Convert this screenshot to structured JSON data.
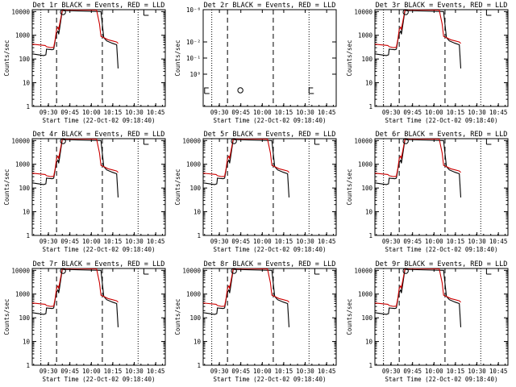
{
  "chart_data": {
    "type": "line",
    "panels": [
      {
        "title": "Det 1r BLACK = Events, RED = LLD",
        "kind": "full"
      },
      {
        "title": "Det 2r BLACK = Events, RED = LLD",
        "kind": "empty"
      },
      {
        "title": "Det 3r BLACK = Events, RED = LLD",
        "kind": "full"
      },
      {
        "title": "Det 4r BLACK = Events, RED = LLD",
        "kind": "full"
      },
      {
        "title": "Det 5r BLACK = Events, RED = LLD",
        "kind": "full"
      },
      {
        "title": "Det 6r BLACK = Events, RED = LLD",
        "kind": "full"
      },
      {
        "title": "Det 7r BLACK = Events, RED = LLD",
        "kind": "full"
      },
      {
        "title": "Det 8r BLACK = Events, RED = LLD",
        "kind": "full"
      },
      {
        "title": "Det 9r BLACK = Events, RED = LLD",
        "kind": "full"
      }
    ],
    "xlabel": "Start Time (22-Oct-02 09:18:40)",
    "ylabel": "Counts/sec",
    "x_unit": "minutes after 09:18:40",
    "xlim": [
      0,
      93
    ],
    "x_ticks": [
      {
        "v": 11.33,
        "label": "09:30"
      },
      {
        "v": 26.33,
        "label": "09:45"
      },
      {
        "v": 41.33,
        "label": "10:00"
      },
      {
        "v": 56.33,
        "label": "10:15"
      },
      {
        "v": 71.33,
        "label": "10:30"
      },
      {
        "v": 86.33,
        "label": "10:45"
      }
    ],
    "y_scale": "log",
    "ylim": [
      1,
      12000
    ],
    "y_ticks": [
      {
        "v": 1,
        "label": "1"
      },
      {
        "v": 10,
        "label": "10"
      },
      {
        "v": 100,
        "label": "100"
      },
      {
        "v": 1000,
        "label": "1000"
      },
      {
        "v": 10000,
        "label": "10000"
      }
    ],
    "ylim_empty": [
      0.9,
      1.2
    ],
    "y_ticks_empty": [
      {
        "v": 1.0,
        "label": "10⁰"
      },
      {
        "v": 1.05,
        "label": "10⁻¹"
      },
      {
        "v": 1.1,
        "label": "10⁻²"
      },
      {
        "v": 1.2,
        "label": "10⁻⁶"
      }
    ],
    "dotted_lines_x": [
      6,
      74
    ],
    "dashed_lines_x": [
      17,
      49
    ],
    "series": [
      {
        "name": "Events",
        "color": "#000000",
        "points": [
          [
            0,
            165
          ],
          [
            8,
            140
          ],
          [
            9.5,
            150
          ],
          [
            10,
            260
          ],
          [
            14,
            245
          ],
          [
            15,
            260
          ],
          [
            15.5,
            380
          ],
          [
            16,
            600
          ],
          [
            17,
            1200
          ],
          [
            18,
            1500
          ],
          [
            18.5,
            1100
          ],
          [
            19,
            1700
          ],
          [
            20.5,
            7000
          ],
          [
            21,
            11000
          ],
          [
            48,
            10000
          ],
          [
            50,
            800
          ],
          [
            52,
            580
          ],
          [
            56,
            460
          ],
          [
            59,
            400
          ],
          [
            60,
            40
          ]
        ]
      },
      {
        "name": "LLD",
        "color": "#cc0000",
        "points": [
          [
            0,
            420
          ],
          [
            9,
            370
          ],
          [
            10,
            330
          ],
          [
            13,
            300
          ],
          [
            15,
            310
          ],
          [
            15.5,
            450
          ],
          [
            16,
            650
          ],
          [
            17,
            1800
          ],
          [
            18,
            2200
          ],
          [
            18.5,
            1700
          ],
          [
            19,
            2600
          ],
          [
            20.5,
            8000
          ],
          [
            21,
            12000
          ],
          [
            45,
            11500
          ],
          [
            47,
            3000
          ],
          [
            48,
            900
          ],
          [
            50,
            800
          ],
          [
            53,
            650
          ],
          [
            56,
            580
          ],
          [
            59,
            520
          ],
          [
            60,
            450
          ]
        ]
      }
    ],
    "markers": [
      {
        "shape": "circle",
        "x": 21.5,
        "y": 11000
      },
      {
        "shape": "bracket",
        "x": 78,
        "y": 11000
      }
    ],
    "markers_empty": [
      {
        "shape": "bracket",
        "x": 1,
        "y": 0.95
      },
      {
        "shape": "circle",
        "x": 26,
        "y": 0.95
      },
      {
        "shape": "bracket",
        "x": 74,
        "y": 0.95
      }
    ]
  }
}
